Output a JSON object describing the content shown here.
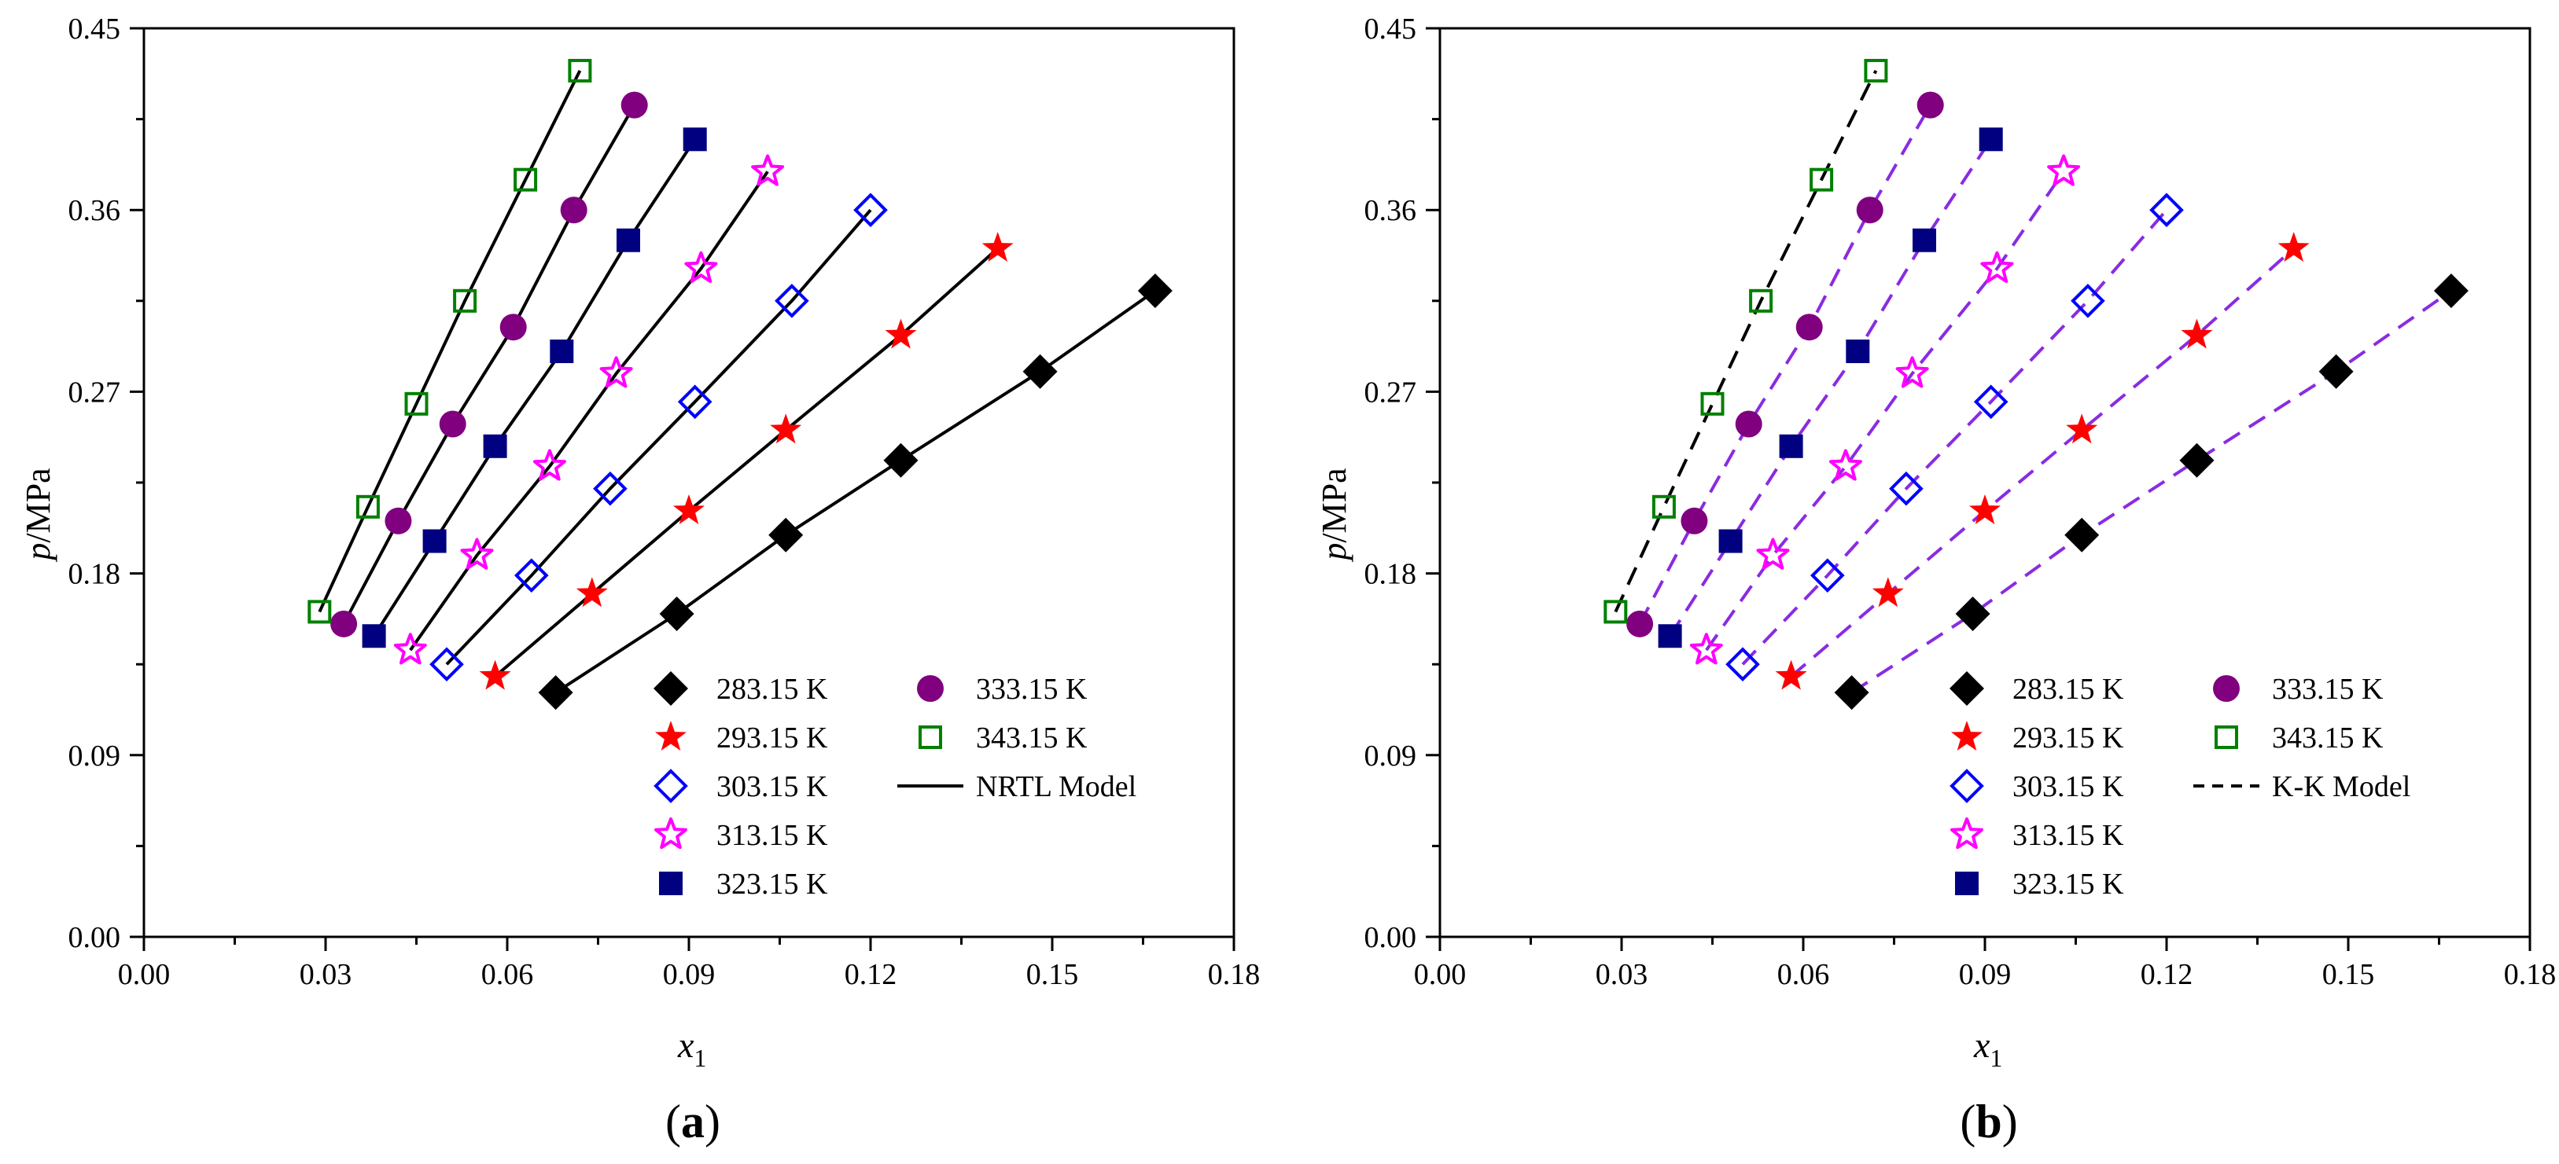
{
  "chart_data": [
    {
      "type": "scatter",
      "panel_label": "(a)",
      "xlabel_main": "x",
      "xlabel_sub": "1",
      "ylabel_main": "p",
      "ylabel_rest": "/MPa",
      "xlim": [
        0,
        0.18
      ],
      "ylim": [
        0,
        0.45
      ],
      "xticks": [
        "0.00",
        "0.03",
        "0.06",
        "0.09",
        "0.12",
        "0.15",
        "0.18"
      ],
      "yticks": [
        "0.00",
        "0.09",
        "0.18",
        "0.27",
        "0.36",
        "0.45"
      ],
      "model_label": "NRTL Model",
      "model_style": "solid",
      "series": [
        {
          "name": "283.15 K",
          "marker": "diamond-filled",
          "color": "#000000",
          "fit_color": "#000000",
          "x": [
            0.068,
            0.088,
            0.106,
            0.125,
            0.148,
            0.167
          ],
          "y": [
            0.121,
            0.16,
            0.199,
            0.236,
            0.28,
            0.32
          ]
        },
        {
          "name": "293.15 K",
          "marker": "star-filled",
          "color": "#ff0000",
          "fit_color": "#000000",
          "x": [
            0.058,
            0.074,
            0.09,
            0.106,
            0.125,
            0.141
          ],
          "y": [
            0.129,
            0.17,
            0.211,
            0.251,
            0.298,
            0.341
          ]
        },
        {
          "name": "303.15 K",
          "marker": "diamond-open",
          "color": "#0000ff",
          "fit_color": "#000000",
          "x": [
            0.05,
            0.064,
            0.077,
            0.091,
            0.107,
            0.12
          ],
          "y": [
            0.135,
            0.179,
            0.222,
            0.265,
            0.315,
            0.36
          ]
        },
        {
          "name": "313.15 K",
          "marker": "star-open",
          "color": "#ff00ff",
          "fit_color": "#000000",
          "x": [
            0.044,
            0.055,
            0.067,
            0.078,
            0.092,
            0.103
          ],
          "y": [
            0.142,
            0.189,
            0.233,
            0.279,
            0.331,
            0.379
          ]
        },
        {
          "name": "323.15 K",
          "marker": "square-filled",
          "color": "#000080",
          "fit_color": "#000000",
          "x": [
            0.038,
            0.048,
            0.058,
            0.069,
            0.08,
            0.091
          ],
          "y": [
            0.149,
            0.196,
            0.243,
            0.29,
            0.345,
            0.395
          ]
        },
        {
          "name": "333.15 K",
          "marker": "circle-filled",
          "color": "#800080",
          "fit_color": "#000000",
          "x": [
            0.033,
            0.042,
            0.051,
            0.061,
            0.071,
            0.081
          ],
          "y": [
            0.155,
            0.206,
            0.254,
            0.302,
            0.36,
            0.412
          ]
        },
        {
          "name": "343.15 K",
          "marker": "square-open",
          "color": "#008000",
          "fit_color": "#000000",
          "x": [
            0.029,
            0.037,
            0.045,
            0.053,
            0.063,
            0.072
          ],
          "y": [
            0.161,
            0.213,
            0.264,
            0.315,
            0.375,
            0.429
          ]
        }
      ]
    },
    {
      "type": "scatter",
      "panel_label": "(b)",
      "xlabel_main": "x",
      "xlabel_sub": "1",
      "ylabel_main": "p",
      "ylabel_rest": "/MPa",
      "xlim": [
        0,
        0.18
      ],
      "ylim": [
        0,
        0.45
      ],
      "xticks": [
        "0.00",
        "0.03",
        "0.06",
        "0.09",
        "0.12",
        "0.15",
        "0.18"
      ],
      "yticks": [
        "0.00",
        "0.09",
        "0.18",
        "0.27",
        "0.36",
        "0.45"
      ],
      "model_label": "K-K Model",
      "model_style": "dashed",
      "series": [
        {
          "name": "283.15 K",
          "marker": "diamond-filled",
          "color": "#000000",
          "fit_color": "#8a2be2",
          "x": [
            0.068,
            0.088,
            0.106,
            0.125,
            0.148,
            0.167
          ],
          "y": [
            0.121,
            0.16,
            0.199,
            0.236,
            0.28,
            0.32
          ]
        },
        {
          "name": "293.15 K",
          "marker": "star-filled",
          "color": "#ff0000",
          "fit_color": "#8a2be2",
          "x": [
            0.058,
            0.074,
            0.09,
            0.106,
            0.125,
            0.141
          ],
          "y": [
            0.129,
            0.17,
            0.211,
            0.251,
            0.298,
            0.341
          ]
        },
        {
          "name": "303.15 K",
          "marker": "diamond-open",
          "color": "#0000ff",
          "fit_color": "#8a2be2",
          "x": [
            0.05,
            0.064,
            0.077,
            0.091,
            0.107,
            0.12
          ],
          "y": [
            0.135,
            0.179,
            0.222,
            0.265,
            0.315,
            0.36
          ]
        },
        {
          "name": "313.15 K",
          "marker": "star-open",
          "color": "#ff00ff",
          "fit_color": "#8a2be2",
          "x": [
            0.044,
            0.055,
            0.067,
            0.078,
            0.092,
            0.103
          ],
          "y": [
            0.142,
            0.189,
            0.233,
            0.279,
            0.331,
            0.379
          ]
        },
        {
          "name": "323.15 K",
          "marker": "square-filled",
          "color": "#000080",
          "fit_color": "#8a2be2",
          "x": [
            0.038,
            0.048,
            0.058,
            0.069,
            0.08,
            0.091
          ],
          "y": [
            0.149,
            0.196,
            0.243,
            0.29,
            0.345,
            0.395
          ]
        },
        {
          "name": "333.15 K",
          "marker": "circle-filled",
          "color": "#800080",
          "fit_color": "#8a2be2",
          "x": [
            0.033,
            0.042,
            0.051,
            0.061,
            0.071,
            0.081
          ],
          "y": [
            0.155,
            0.206,
            0.254,
            0.302,
            0.36,
            0.412
          ]
        },
        {
          "name": "343.15 K",
          "marker": "square-open",
          "color": "#008000",
          "fit_color": "#000000",
          "x": [
            0.029,
            0.037,
            0.045,
            0.053,
            0.063,
            0.072
          ],
          "y": [
            0.161,
            0.213,
            0.264,
            0.315,
            0.375,
            0.429
          ]
        }
      ]
    }
  ]
}
